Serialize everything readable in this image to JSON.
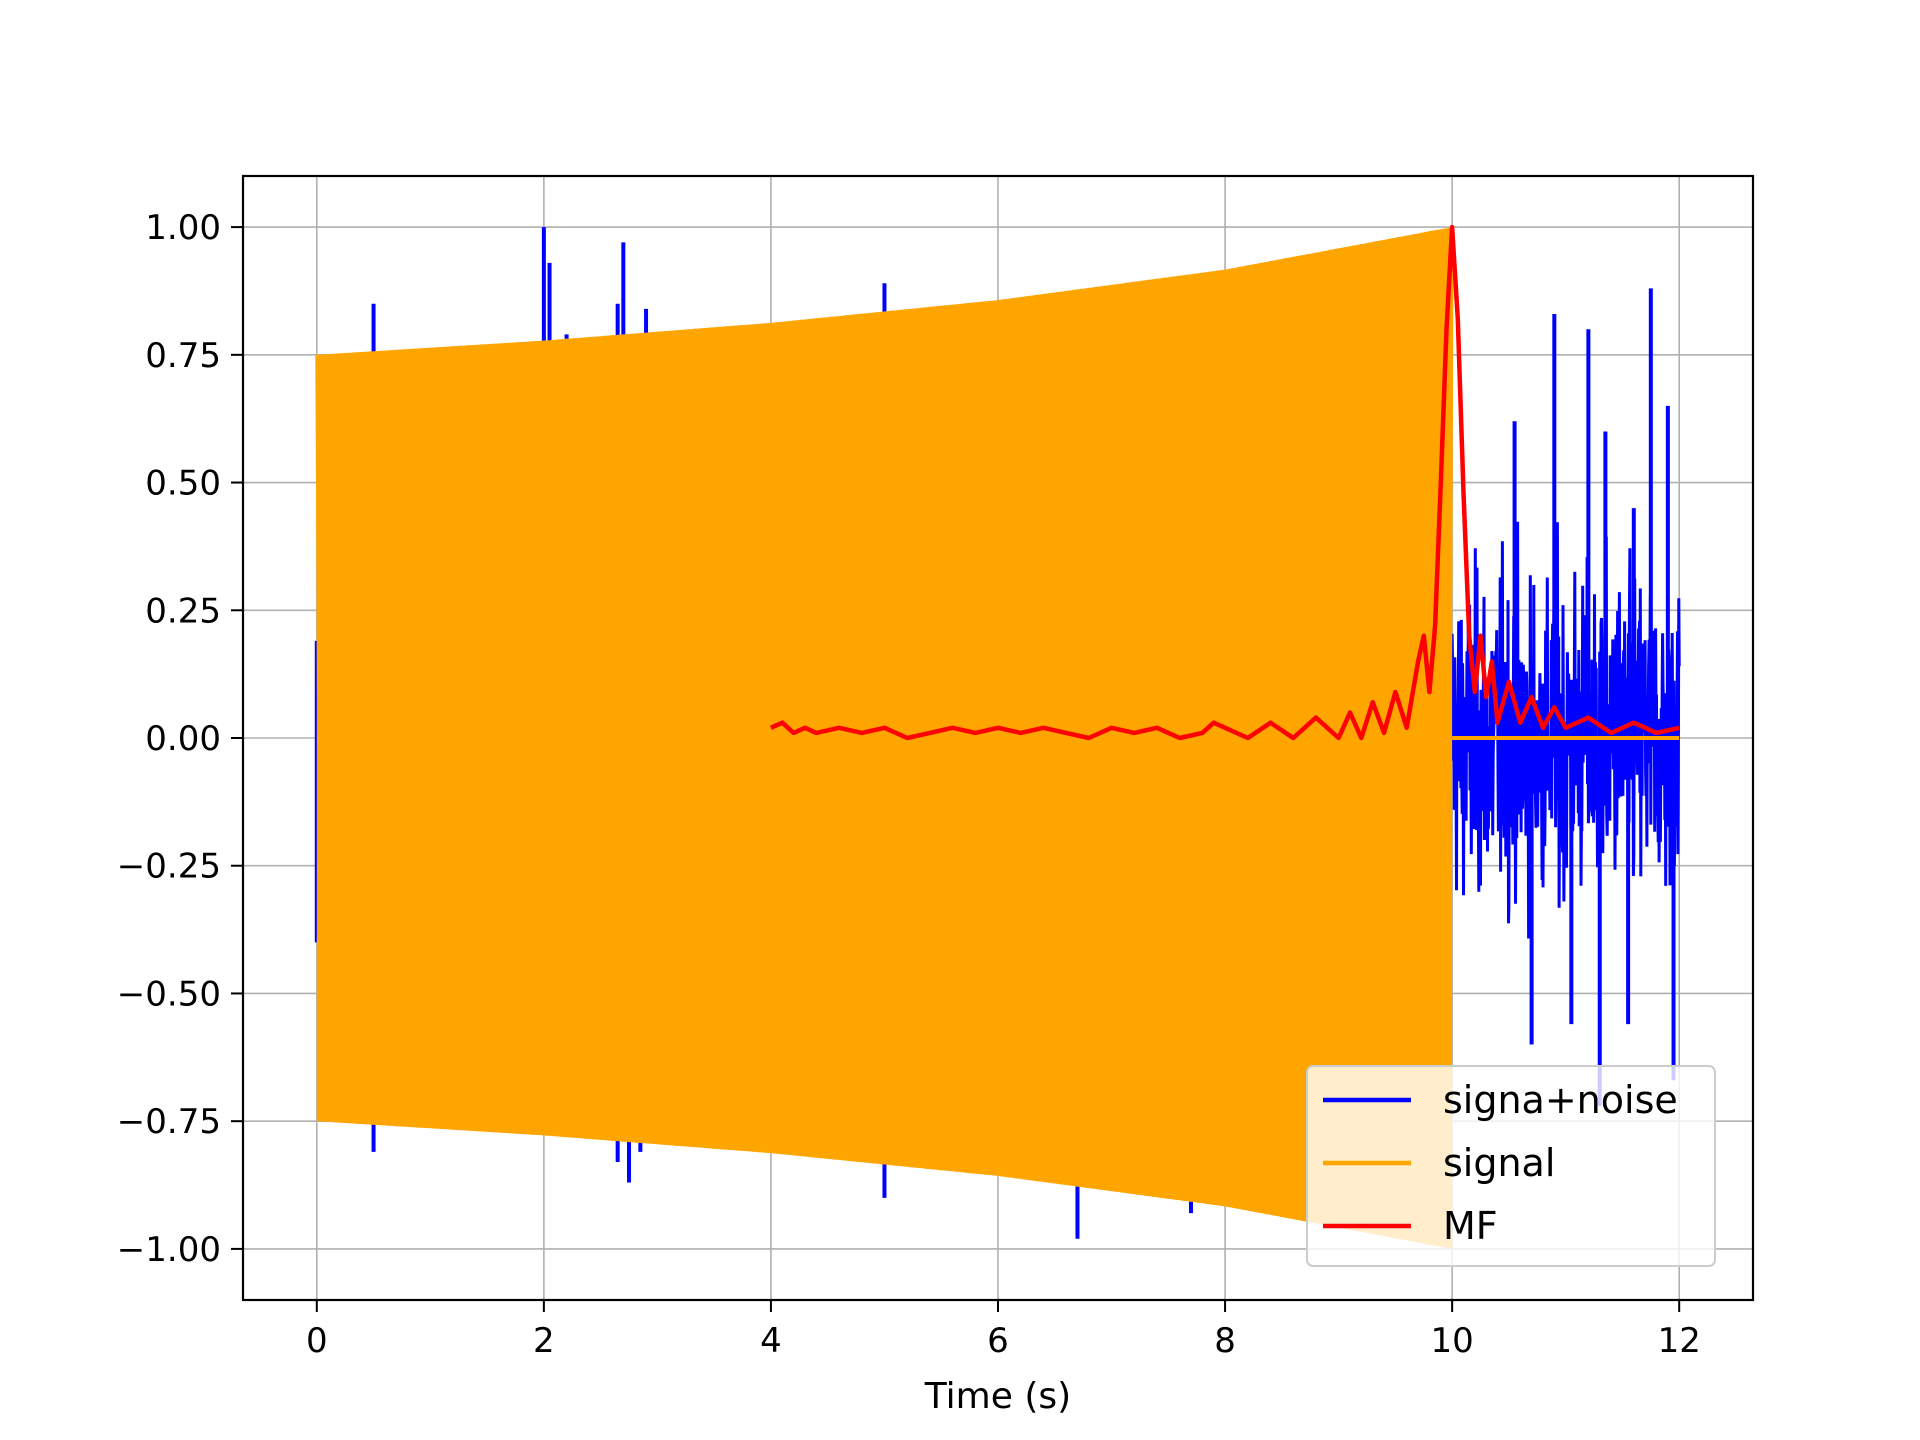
{
  "chart_data": {
    "type": "line",
    "title": "",
    "xlabel": "Time (s)",
    "ylabel": "",
    "xlim": [
      -0.65,
      12.65
    ],
    "ylim": [
      -1.1,
      1.1
    ],
    "xticks": [
      0,
      2,
      4,
      6,
      8,
      10,
      12
    ],
    "xtick_labels": [
      "0",
      "2",
      "4",
      "6",
      "8",
      "10",
      "12"
    ],
    "yticks": [
      1.0,
      0.75,
      0.5,
      0.25,
      0.0,
      -0.25,
      -0.5,
      -0.75,
      -1.0
    ],
    "ytick_labels": [
      "1.00",
      "0.75",
      "0.50",
      "0.25",
      "0.00",
      "−0.25",
      "−0.50",
      "−0.75",
      "−1.00"
    ],
    "grid": true,
    "legend_position": "lower-right",
    "series": [
      {
        "name": "signa+noise",
        "color": "#0000ff",
        "description_pts": "noisy chirp from 0 to 10 s, pure noise 10 to 12 s",
        "spikes": [
          {
            "x": 0.5,
            "y": 0.85
          },
          {
            "x": 0.5,
            "y": -0.81
          },
          {
            "x": 2.0,
            "y": 1.0
          },
          {
            "x": 2.05,
            "y": 0.93
          },
          {
            "x": 2.2,
            "y": 0.79
          },
          {
            "x": 2.65,
            "y": 0.85
          },
          {
            "x": 2.7,
            "y": 0.97
          },
          {
            "x": 2.75,
            "y": -0.87
          },
          {
            "x": 2.9,
            "y": 0.84
          },
          {
            "x": 2.65,
            "y": -0.83
          },
          {
            "x": 2.85,
            "y": -0.81
          },
          {
            "x": 5.0,
            "y": 0.89
          },
          {
            "x": 5.0,
            "y": -0.9
          },
          {
            "x": 6.7,
            "y": 0.87
          },
          {
            "x": 6.7,
            "y": -0.98
          },
          {
            "x": 7.7,
            "y": -0.93
          }
        ],
        "noise_region": {
          "x_start": 10.0,
          "x_end": 12.0,
          "y_max": 0.88,
          "y_min": -0.72
        }
      },
      {
        "name": "signal",
        "color": "#ffa500",
        "envelope_x": [
          0,
          2,
          4,
          6,
          8,
          10
        ],
        "envelope_amp": [
          0.75,
          0.7778,
          0.8125,
          0.8571,
          0.9167,
          1.0
        ],
        "after_10s": 0.0
      },
      {
        "name": "MF",
        "color": "#ff0000",
        "x": [
          4.0,
          4.1,
          4.2,
          4.3,
          4.4,
          4.6,
          4.8,
          5.0,
          5.2,
          5.4,
          5.6,
          5.8,
          6.0,
          6.2,
          6.4,
          6.6,
          6.8,
          7.0,
          7.2,
          7.4,
          7.6,
          7.8,
          7.9,
          8.0,
          8.2,
          8.4,
          8.6,
          8.8,
          9.0,
          9.1,
          9.2,
          9.3,
          9.4,
          9.5,
          9.6,
          9.7,
          9.75,
          9.8,
          9.85,
          9.9,
          9.95,
          10.0,
          10.05,
          10.1,
          10.15,
          10.2,
          10.25,
          10.3,
          10.35,
          10.4,
          10.5,
          10.6,
          10.7,
          10.8,
          10.9,
          11.0,
          11.2,
          11.4,
          11.6,
          11.8,
          12.0
        ],
        "y": [
          0.02,
          0.03,
          0.01,
          0.02,
          0.01,
          0.02,
          0.01,
          0.02,
          0.0,
          0.01,
          0.02,
          0.01,
          0.02,
          0.01,
          0.02,
          0.01,
          0.0,
          0.02,
          0.01,
          0.02,
          0.0,
          0.01,
          0.03,
          0.02,
          0.0,
          0.03,
          0.0,
          0.04,
          0.0,
          0.05,
          0.0,
          0.07,
          0.01,
          0.09,
          0.02,
          0.15,
          0.2,
          0.09,
          0.22,
          0.5,
          0.8,
          1.0,
          0.82,
          0.48,
          0.2,
          0.09,
          0.2,
          0.08,
          0.15,
          0.03,
          0.11,
          0.03,
          0.08,
          0.02,
          0.06,
          0.02,
          0.04,
          0.01,
          0.03,
          0.01,
          0.02
        ]
      }
    ]
  }
}
